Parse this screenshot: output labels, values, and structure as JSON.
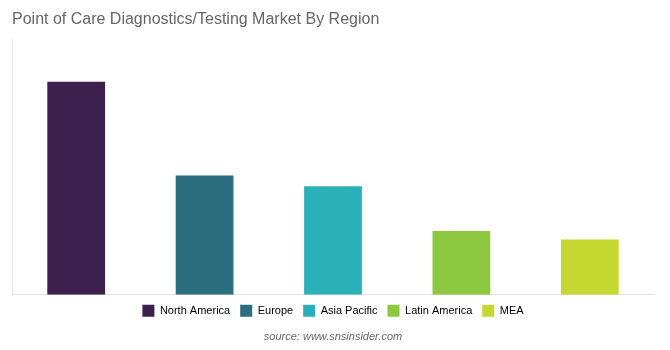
{
  "chart_data": {
    "type": "bar",
    "title": "Point of Care Diagnostics/Testing Market By Region",
    "categories": [
      "North America",
      "Europe",
      "Asia Pacific",
      "Latin America",
      "MEA"
    ],
    "values": [
      100,
      56,
      51,
      30,
      26
    ],
    "colors": [
      "#3d1f4e",
      "#2d6e7e",
      "#2ab0b8",
      "#8dc840",
      "#c5d832"
    ],
    "ylim": [
      0,
      120
    ],
    "grid": false,
    "tick_labels": false,
    "legend": "bottom",
    "annotations": [
      "source: www.snsinsider.com"
    ]
  }
}
